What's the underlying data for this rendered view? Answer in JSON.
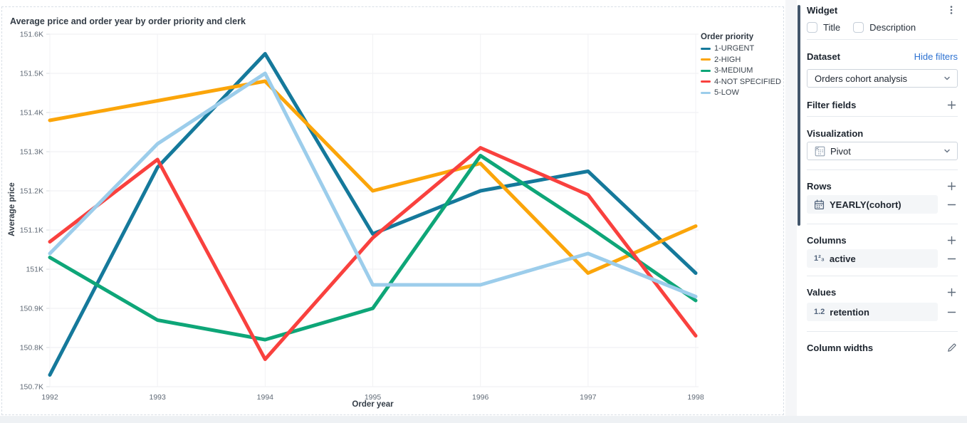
{
  "chart_data": {
    "type": "line",
    "title": "Average price and order year by order priority and clerk",
    "xlabel": "Order year",
    "ylabel": "Average price",
    "legend_title": "Order priority",
    "legend_position": "top-right",
    "grid": true,
    "unit": "K (thousands)",
    "categories": [
      "1992",
      "1993",
      "1994",
      "1995",
      "1996",
      "1997",
      "1998"
    ],
    "ylim": [
      150.7,
      151.6
    ],
    "yticks": [
      "151.6K",
      "151.5K",
      "151.4K",
      "151.3K",
      "151.2K",
      "151.1K",
      "151K",
      "150.9K",
      "150.8K",
      "150.7K"
    ],
    "series": [
      {
        "name": "1-URGENT",
        "color": "#15799B",
        "values": [
          150.73,
          151.26,
          151.55,
          151.09,
          151.2,
          151.25,
          150.99
        ]
      },
      {
        "name": "2-HIGH",
        "color": "#FBA50A",
        "values": [
          151.38,
          151.43,
          151.48,
          151.2,
          151.27,
          150.99,
          151.11
        ]
      },
      {
        "name": "3-MEDIUM",
        "color": "#0EA678",
        "values": [
          151.03,
          150.87,
          150.82,
          150.9,
          151.29,
          151.11,
          150.92
        ]
      },
      {
        "name": "4-NOT SPECIFIED",
        "color": "#F9413E",
        "values": [
          151.07,
          151.28,
          150.77,
          151.08,
          151.31,
          151.19,
          150.83
        ]
      },
      {
        "name": "5-LOW",
        "color": "#9CCDEB",
        "values": [
          151.04,
          151.32,
          151.5,
          150.96,
          150.96,
          151.04,
          150.93
        ]
      }
    ]
  },
  "panel": {
    "widget": {
      "title": "Widget",
      "checkboxes": [
        {
          "label": "Title",
          "checked": false
        },
        {
          "label": "Description",
          "checked": false
        }
      ]
    },
    "dataset": {
      "label": "Dataset",
      "link": "Hide filters",
      "selected": "Orders cohort analysis"
    },
    "filter_fields": {
      "label": "Filter fields"
    },
    "visualization": {
      "label": "Visualization",
      "selected": "Pivot"
    },
    "rows": {
      "label": "Rows",
      "fields": [
        {
          "name": "YEARLY(cohort)",
          "icon": "calendar-icon"
        }
      ]
    },
    "columns": {
      "label": "Columns",
      "fields": [
        {
          "name": "active",
          "icon": "numeric-icon",
          "icon_text": "1²₃"
        }
      ]
    },
    "values": {
      "label": "Values",
      "fields": [
        {
          "name": "retention",
          "icon": "decimal-icon",
          "icon_text": "1.2"
        }
      ]
    },
    "column_widths": {
      "label": "Column widths"
    }
  }
}
